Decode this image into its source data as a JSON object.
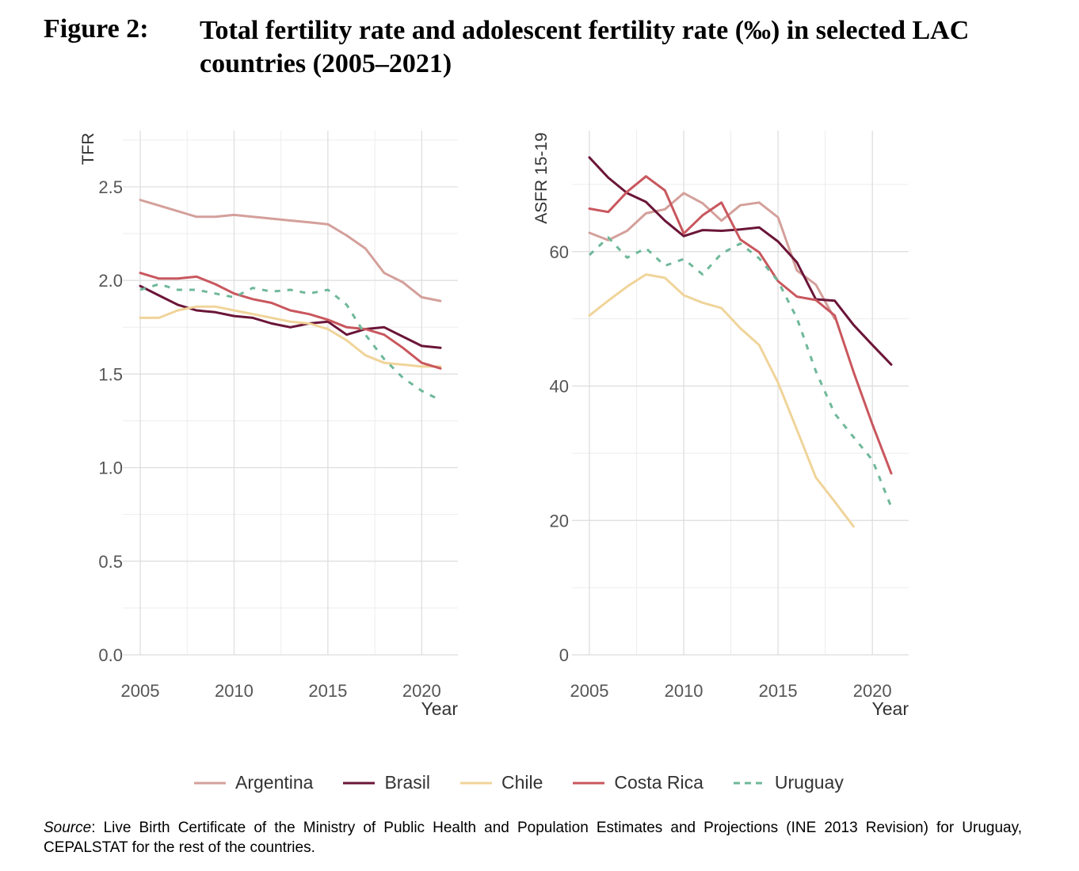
{
  "figure": {
    "label": "Figure 2:",
    "title": "Total fertility rate and adolescent fertility rate (‰) in selected LAC countries (2005–2021)"
  },
  "source": {
    "label": "Source",
    "text": ": Live Birth Certificate of the Ministry of Public Health and Population Estimates and Projections (INE 2013 Revision) for Uruguay, CEPALSTAT for the rest of the countries."
  },
  "legend": [
    {
      "name": "Argentina",
      "color": "#d4a09b",
      "dashed": false
    },
    {
      "name": "Brasil",
      "color": "#6b1538",
      "dashed": false
    },
    {
      "name": "Chile",
      "color": "#f0d49a",
      "dashed": false
    },
    {
      "name": "Costa Rica",
      "color": "#c9575e",
      "dashed": false
    },
    {
      "name": "Uruguay",
      "color": "#6fb89a",
      "dashed": true
    }
  ],
  "chart_data": [
    {
      "type": "line",
      "xlabel": "Year",
      "ylabel": "TFR",
      "xlim": [
        2005,
        2021
      ],
      "ylim": [
        0,
        2.8
      ],
      "xticks": [
        "2005",
        "2010",
        "2015",
        "2020"
      ],
      "yticks": [
        "0.0",
        "0.5",
        "1.0",
        "1.5",
        "2.0",
        "2.5"
      ],
      "grid": true,
      "legend_position": "bottom",
      "series": [
        {
          "name": "Argentina",
          "x": [
            2005,
            2006,
            2007,
            2008,
            2009,
            2010,
            2011,
            2012,
            2013,
            2014,
            2015,
            2016,
            2017,
            2018,
            2019,
            2020,
            2021
          ],
          "values": [
            2.43,
            2.4,
            2.37,
            2.34,
            2.34,
            2.35,
            2.34,
            2.33,
            2.32,
            2.31,
            2.3,
            2.24,
            2.17,
            2.04,
            1.99,
            1.91,
            1.89
          ]
        },
        {
          "name": "Brasil",
          "x": [
            2005,
            2006,
            2007,
            2008,
            2009,
            2010,
            2011,
            2012,
            2013,
            2014,
            2015,
            2016,
            2017,
            2018,
            2019,
            2020,
            2021
          ],
          "values": [
            1.97,
            1.92,
            1.87,
            1.84,
            1.83,
            1.81,
            1.8,
            1.77,
            1.75,
            1.77,
            1.78,
            1.71,
            1.74,
            1.75,
            1.7,
            1.65,
            1.64
          ]
        },
        {
          "name": "Chile",
          "x": [
            2005,
            2006,
            2007,
            2008,
            2009,
            2010,
            2011,
            2012,
            2013,
            2014,
            2015,
            2016,
            2017,
            2018,
            2019,
            2020,
            2021
          ],
          "values": [
            1.8,
            1.8,
            1.84,
            1.86,
            1.86,
            1.84,
            1.82,
            1.8,
            1.78,
            1.77,
            1.74,
            1.68,
            1.6,
            1.56,
            1.55,
            1.54,
            1.54
          ]
        },
        {
          "name": "Costa Rica",
          "x": [
            2005,
            2006,
            2007,
            2008,
            2009,
            2010,
            2011,
            2012,
            2013,
            2014,
            2015,
            2016,
            2017,
            2018,
            2019,
            2020,
            2021
          ],
          "values": [
            2.04,
            2.01,
            2.01,
            2.02,
            1.98,
            1.93,
            1.9,
            1.88,
            1.84,
            1.82,
            1.79,
            1.75,
            1.74,
            1.71,
            1.64,
            1.56,
            1.53
          ]
        },
        {
          "name": "Uruguay",
          "x": [
            2005,
            2006,
            2007,
            2008,
            2009,
            2010,
            2011,
            2012,
            2013,
            2014,
            2015,
            2016,
            2017,
            2018,
            2019,
            2020,
            2021
          ],
          "values": [
            1.95,
            1.98,
            1.95,
            1.95,
            1.93,
            1.91,
            1.96,
            1.94,
            1.95,
            1.93,
            1.95,
            1.87,
            1.71,
            1.58,
            1.48,
            1.41,
            1.36
          ]
        }
      ]
    },
    {
      "type": "line",
      "xlabel": "Year",
      "ylabel": "ASFR 15-19",
      "xlim": [
        2005,
        2021
      ],
      "ylim": [
        0,
        78
      ],
      "xticks": [
        "2005",
        "2010",
        "2015",
        "2020"
      ],
      "yticks": [
        "0",
        "20",
        "40",
        "60"
      ],
      "grid": true,
      "legend_position": "bottom",
      "series": [
        {
          "name": "Argentina",
          "x": [
            2005,
            2006,
            2007,
            2008,
            2009,
            2010,
            2011,
            2012,
            2013,
            2014,
            2015,
            2016,
            2017,
            2018
          ],
          "values": [
            62.8,
            61.7,
            63.1,
            65.7,
            66.3,
            68.7,
            67.2,
            64.6,
            66.9,
            67.3,
            65.1,
            57.2,
            55.1,
            50.0
          ]
        },
        {
          "name": "Brasil",
          "x": [
            2005,
            2006,
            2007,
            2008,
            2009,
            2010,
            2011,
            2012,
            2013,
            2014,
            2015,
            2016,
            2017,
            2018,
            2019,
            2020,
            2021
          ],
          "values": [
            74.0,
            71.0,
            68.7,
            67.4,
            64.6,
            62.3,
            63.2,
            63.1,
            63.3,
            63.6,
            61.5,
            58.4,
            52.9,
            52.7,
            49.1,
            46.1,
            43.2
          ]
        },
        {
          "name": "Chile",
          "x": [
            2005,
            2006,
            2007,
            2008,
            2009,
            2010,
            2011,
            2012,
            2013,
            2014,
            2015,
            2016,
            2017,
            2018,
            2019
          ],
          "values": [
            50.5,
            52.7,
            54.8,
            56.6,
            56.1,
            53.5,
            52.4,
            51.6,
            48.6,
            46.1,
            40.5,
            33.5,
            26.4,
            22.8,
            19.1
          ]
        },
        {
          "name": "Costa Rica",
          "x": [
            2005,
            2006,
            2007,
            2008,
            2009,
            2010,
            2011,
            2012,
            2013,
            2014,
            2015,
            2016,
            2017,
            2018,
            2019,
            2020,
            2021
          ],
          "values": [
            66.4,
            65.9,
            68.9,
            71.2,
            69.1,
            62.7,
            65.4,
            67.3,
            61.8,
            59.9,
            55.6,
            53.3,
            52.8,
            50.5,
            42.1,
            34.3,
            27.0
          ]
        },
        {
          "name": "Uruguay",
          "x": [
            2005,
            2006,
            2007,
            2008,
            2009,
            2010,
            2011,
            2012,
            2013,
            2014,
            2015,
            2016,
            2017,
            2018,
            2019,
            2020,
            2021
          ],
          "values": [
            59.5,
            62.1,
            59.1,
            60.5,
            57.9,
            58.9,
            56.6,
            59.7,
            61.2,
            59.0,
            55.6,
            50.1,
            42.2,
            35.9,
            32.4,
            29.0,
            22.0
          ]
        }
      ]
    }
  ]
}
